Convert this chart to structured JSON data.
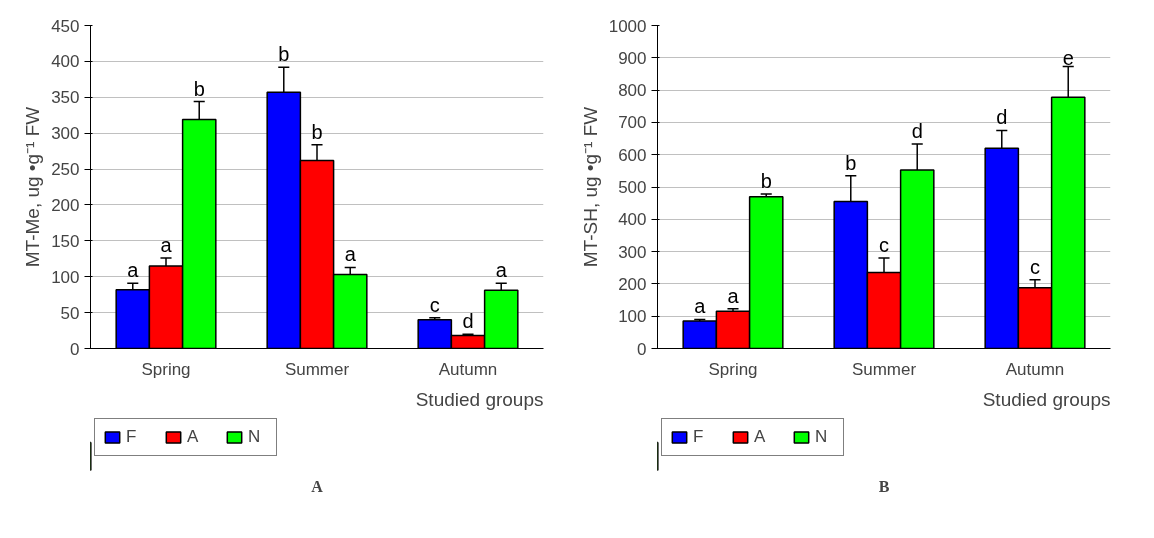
{
  "chart_data": [
    {
      "type": "bar",
      "ylabel": "MT-Me, ug •g⁻¹ FW",
      "xlabel": "Studied groups",
      "categories": [
        "Spring",
        "Summer",
        "Autumn"
      ],
      "series": [
        {
          "name": "F",
          "color": "#0000ff",
          "values": [
            82,
            357,
            40
          ],
          "errors": [
            [
              82,
              91
            ],
            [
              357,
              392
            ],
            [
              40,
              43
            ]
          ]
        },
        {
          "name": "A",
          "color": "#ff0000",
          "values": [
            115,
            262,
            18
          ],
          "errors": [
            [
              115,
              126
            ],
            [
              262,
              284
            ],
            [
              18,
              20
            ]
          ]
        },
        {
          "name": "N",
          "color": "#00ff00",
          "values": [
            319,
            103,
            81
          ],
          "errors": [
            [
              319,
              344
            ],
            [
              103,
              113
            ],
            [
              81,
              91
            ]
          ]
        }
      ],
      "ylim": [
        0,
        450
      ],
      "yticks": [
        0,
        50,
        100,
        150,
        200,
        250,
        300,
        350,
        400,
        450
      ],
      "grid": "y",
      "legend": "bottom left",
      "annotations": [
        "a",
        "a",
        "b",
        "b",
        "b",
        "a",
        "c",
        "d",
        "a",
        "A"
      ]
    },
    {
      "type": "bar",
      "ylabel": "MT-SH, ug •g⁻¹ FW",
      "xlabel": "Studied groups",
      "categories": [
        "Spring",
        "Summer",
        "Autumn"
      ],
      "series": [
        {
          "name": "F",
          "color": "#0000ff",
          "values": [
            85,
            455,
            620
          ],
          "errors": [
            [
              85,
              90
            ],
            [
              455,
              535
            ],
            [
              620,
              675
            ]
          ]
        },
        {
          "name": "A",
          "color": "#ff0000",
          "values": [
            115,
            235,
            188
          ],
          "errors": [
            [
              115,
              123
            ],
            [
              235,
              280
            ],
            [
              188,
              213
            ]
          ]
        },
        {
          "name": "N",
          "color": "#00ff00",
          "values": [
            470,
            553,
            778
          ],
          "errors": [
            [
              470,
              478
            ],
            [
              553,
              633
            ],
            [
              778,
              873
            ]
          ]
        }
      ],
      "ylim": [
        0,
        1000
      ],
      "yticks": [
        0,
        100,
        200,
        300,
        400,
        500,
        600,
        700,
        800,
        900,
        1000
      ],
      "grid": "y",
      "legend": "bottom left",
      "annotations": [
        "a",
        "a",
        "b",
        "b",
        "c",
        "d",
        "d",
        "c",
        "e",
        "B"
      ]
    }
  ]
}
